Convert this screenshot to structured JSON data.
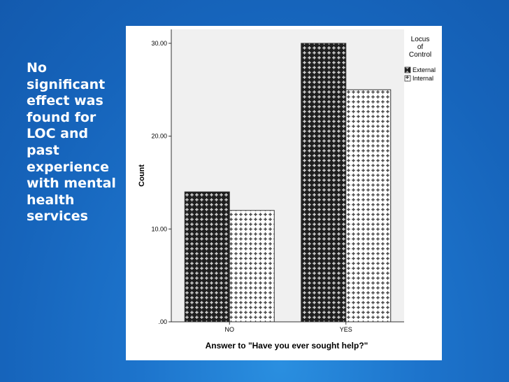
{
  "slide": {
    "side_text": "No\nsignificant\neffect was\nfound for\nLOC and\npast\nexperience\nwith mental\nhealth\nservices"
  },
  "colors": {
    "background": "#1a6cc4",
    "text": "#ffffff",
    "plot_background": "#f0f0f0"
  },
  "chart_data": {
    "type": "bar",
    "title": "",
    "xlabel": "Answer to \"Have you ever sought help?\"",
    "ylabel": "Count",
    "categories": [
      "NO",
      "YES"
    ],
    "series": [
      {
        "name": "External",
        "values": [
          14,
          30
        ]
      },
      {
        "name": "Internal",
        "values": [
          12,
          25
        ]
      }
    ],
    "ylim": [
      0,
      31.5
    ],
    "yticks": [
      0,
      10,
      20,
      30
    ],
    "ytick_labels": [
      ".00",
      "10.00",
      "20.00",
      "30.00"
    ],
    "legend": {
      "title": "Locus\nof\nControl",
      "position": "right-top"
    },
    "grid": false
  }
}
